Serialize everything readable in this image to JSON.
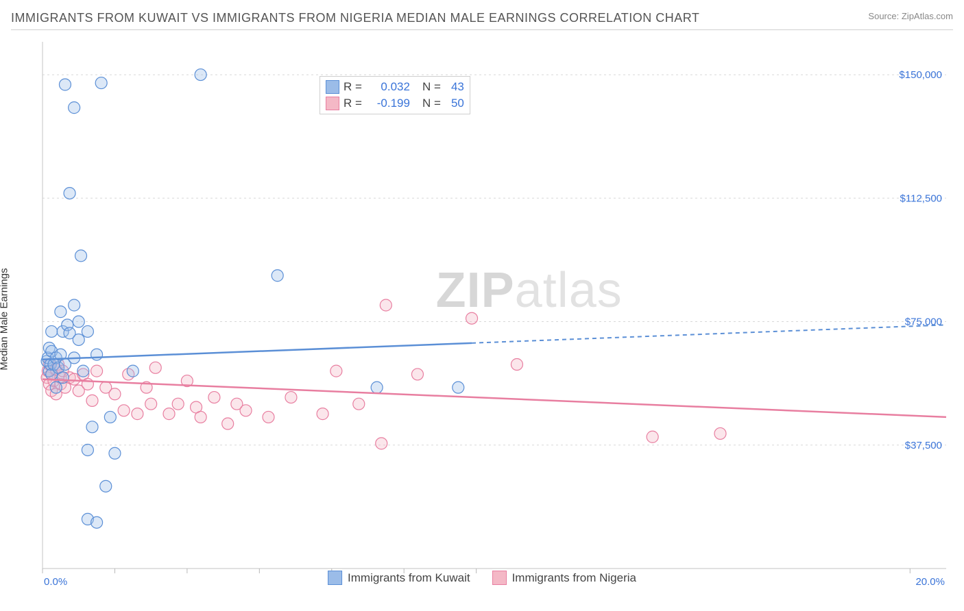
{
  "header": {
    "title": "IMMIGRANTS FROM KUWAIT VS IMMIGRANTS FROM NIGERIA MEDIAN MALE EARNINGS CORRELATION CHART",
    "source_label": "Source:",
    "source_name": "ZipAtlas.com"
  },
  "watermark": {
    "part1": "ZIP",
    "part2": "atlas"
  },
  "chart": {
    "type": "scatter",
    "ylabel": "Median Male Earnings",
    "xlim": [
      0,
      20
    ],
    "ylim": [
      0,
      160000
    ],
    "yticks": [
      {
        "v": 37500,
        "label": "$37,500"
      },
      {
        "v": 75000,
        "label": "$75,000"
      },
      {
        "v": 112500,
        "label": "$112,500"
      },
      {
        "v": 150000,
        "label": "$150,000"
      }
    ],
    "xticks_at": [
      0.0,
      1.6,
      3.2,
      4.8,
      6.4,
      8.0,
      9.6,
      19.2
    ],
    "xtick_labels": {
      "left": "0.0%",
      "right": "20.0%"
    },
    "background_color": "#ffffff",
    "grid_color": "#d8d8d8",
    "axis_color": "#cfcfcf",
    "marker_radius": 8.5,
    "series": [
      {
        "key": "kuwait",
        "label": "Immigrants from Kuwait",
        "color_fill": "#9bbce8",
        "color_stroke": "#5b8fd6",
        "R": "0.032",
        "N": "43",
        "trend": {
          "x1": 0,
          "y1": 63500,
          "solid_until_x": 9.5,
          "x2": 20,
          "y2": 74000
        },
        "points": [
          [
            0.1,
            63000
          ],
          [
            0.12,
            64000
          ],
          [
            0.15,
            60000
          ],
          [
            0.15,
            67000
          ],
          [
            0.18,
            62000
          ],
          [
            0.2,
            59000
          ],
          [
            0.2,
            66000
          ],
          [
            0.2,
            72000
          ],
          [
            0.25,
            62000
          ],
          [
            0.3,
            64000
          ],
          [
            0.3,
            55000
          ],
          [
            0.35,
            61000
          ],
          [
            0.4,
            65000
          ],
          [
            0.4,
            78000
          ],
          [
            0.45,
            72000
          ],
          [
            0.5,
            62000
          ],
          [
            0.5,
            147000
          ],
          [
            0.55,
            74000
          ],
          [
            0.6,
            71500
          ],
          [
            0.6,
            114000
          ],
          [
            0.7,
            64000
          ],
          [
            0.7,
            80000
          ],
          [
            0.7,
            140000
          ],
          [
            0.8,
            69500
          ],
          [
            0.8,
            75000
          ],
          [
            0.85,
            95000
          ],
          [
            0.9,
            60000
          ],
          [
            1.0,
            36000
          ],
          [
            1.0,
            72000
          ],
          [
            1.0,
            15000
          ],
          [
            1.1,
            43000
          ],
          [
            1.2,
            14000
          ],
          [
            1.2,
            65000
          ],
          [
            1.3,
            147500
          ],
          [
            1.4,
            25000
          ],
          [
            1.5,
            46000
          ],
          [
            1.6,
            35000
          ],
          [
            2.0,
            60000
          ],
          [
            3.5,
            150000
          ],
          [
            5.2,
            89000
          ],
          [
            7.4,
            55000
          ],
          [
            9.2,
            55000
          ],
          [
            0.45,
            58000
          ]
        ]
      },
      {
        "key": "nigeria",
        "label": "Immigrants from Nigeria",
        "color_fill": "#f4b8c6",
        "color_stroke": "#e87ea0",
        "R": "-0.199",
        "N": "50",
        "trend": {
          "x1": 0,
          "y1": 57500,
          "solid_until_x": 20,
          "x2": 20,
          "y2": 46000
        },
        "points": [
          [
            0.1,
            58000
          ],
          [
            0.12,
            60000
          ],
          [
            0.15,
            56000
          ],
          [
            0.15,
            62000
          ],
          [
            0.2,
            54000
          ],
          [
            0.2,
            59000
          ],
          [
            0.25,
            57000
          ],
          [
            0.3,
            60500
          ],
          [
            0.3,
            53000
          ],
          [
            0.35,
            62000
          ],
          [
            0.4,
            56000
          ],
          [
            0.4,
            58000
          ],
          [
            0.45,
            60000
          ],
          [
            0.5,
            55000
          ],
          [
            0.6,
            58000
          ],
          [
            0.7,
            57500
          ],
          [
            0.8,
            54000
          ],
          [
            0.9,
            59000
          ],
          [
            1.0,
            56000
          ],
          [
            1.1,
            51000
          ],
          [
            1.2,
            60000
          ],
          [
            1.4,
            55000
          ],
          [
            1.6,
            53000
          ],
          [
            1.8,
            48000
          ],
          [
            1.9,
            59000
          ],
          [
            2.1,
            47000
          ],
          [
            2.3,
            55000
          ],
          [
            2.4,
            50000
          ],
          [
            2.5,
            61000
          ],
          [
            2.8,
            47000
          ],
          [
            3.0,
            50000
          ],
          [
            3.2,
            57000
          ],
          [
            3.4,
            49000
          ],
          [
            3.5,
            46000
          ],
          [
            3.8,
            52000
          ],
          [
            4.1,
            44000
          ],
          [
            4.3,
            50000
          ],
          [
            4.5,
            48000
          ],
          [
            5.0,
            46000
          ],
          [
            5.5,
            52000
          ],
          [
            6.2,
            47000
          ],
          [
            6.5,
            60000
          ],
          [
            7.0,
            50000
          ],
          [
            7.5,
            38000
          ],
          [
            7.6,
            80000
          ],
          [
            8.3,
            59000
          ],
          [
            9.5,
            76000
          ],
          [
            10.5,
            62000
          ],
          [
            13.5,
            40000
          ],
          [
            15.0,
            41000
          ]
        ]
      }
    ],
    "stats_box": {
      "R_label": "R",
      "N_label": "N",
      "eq": "="
    },
    "legend_bottom_keys": [
      "kuwait",
      "nigeria"
    ]
  }
}
